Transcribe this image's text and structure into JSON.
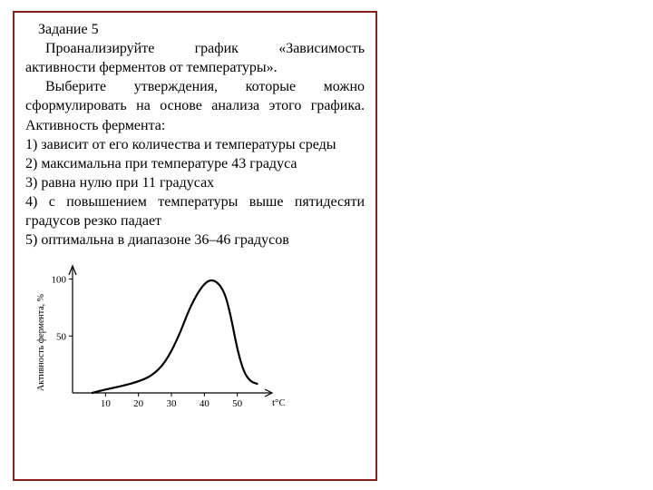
{
  "border_color": "#8a1f1f",
  "text_color": "#000000",
  "background_color": "#ffffff",
  "task": {
    "title": "Задание 5",
    "p1": "Проанализируйте график «Зависимость активности ферментов от температуры».",
    "p2": "Выберите утверждения, которые можно сформулировать на основе анализа этого графика. Активность фермента:",
    "opt1": " 1) зависит от его количества и температуры среды",
    "opt2": "2) максимальна при температуре 43 градуса",
    "opt3": "3) равна нулю при 11 градусах",
    "opt4": " 4) с повышением температуры выше пятидесяти градусов резко падает",
    "opt5": "5) оптимальна в диапазоне 36–46 градусов"
  },
  "chart": {
    "type": "line",
    "xlabel": "t°C",
    "ylabel": "Активность фермента, %",
    "x_ticks": [
      10,
      20,
      30,
      40,
      50
    ],
    "y_ticks": [
      50,
      100
    ],
    "xlim": [
      0,
      60
    ],
    "ylim": [
      0,
      110
    ],
    "curve": [
      [
        6,
        0
      ],
      [
        10,
        3
      ],
      [
        15,
        6
      ],
      [
        20,
        10
      ],
      [
        24,
        15
      ],
      [
        28,
        26
      ],
      [
        32,
        48
      ],
      [
        36,
        78
      ],
      [
        40,
        97
      ],
      [
        43,
        100
      ],
      [
        46,
        90
      ],
      [
        48,
        68
      ],
      [
        50,
        38
      ],
      [
        52,
        18
      ],
      [
        54,
        10
      ],
      [
        56,
        8
      ]
    ],
    "line_color": "#000000",
    "line_width": 2.2,
    "axis_color": "#000000",
    "axis_width": 1.2,
    "tick_len": 4,
    "tick_fontsize": 11,
    "label_fontsize": 10
  }
}
